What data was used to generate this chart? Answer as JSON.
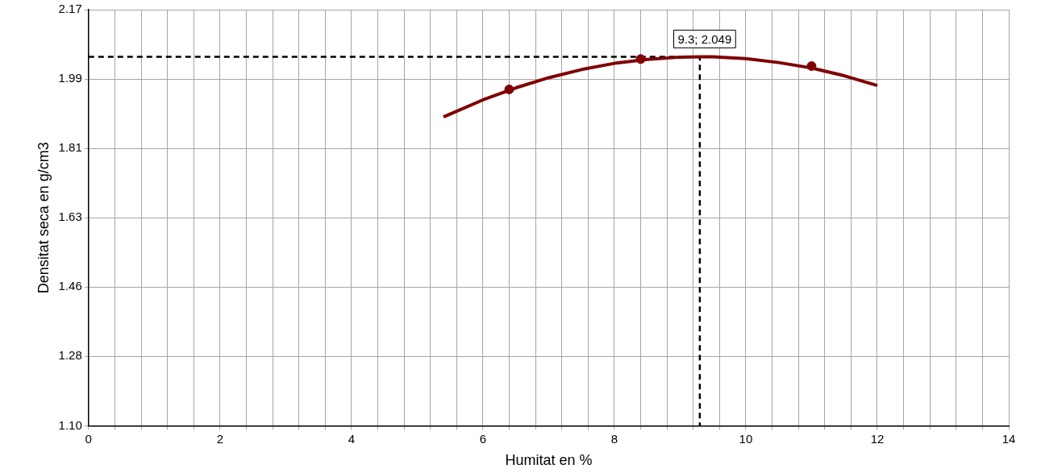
{
  "chart_data": {
    "type": "line",
    "xlabel": "Humitat en %",
    "ylabel": "Densitat seca en g/cm3",
    "xlim": [
      0,
      14
    ],
    "xticks": [
      0,
      {
        "value": 0.4,
        "label": null
      },
      {
        "value": 0.8,
        "label": null
      },
      {
        "value": 1.2,
        "label": null
      },
      {
        "value": 1.6,
        "label": null
      },
      2,
      {
        "value": 2.4,
        "label": null
      },
      {
        "value": 2.8,
        "label": null
      },
      {
        "value": 3.2,
        "label": null
      },
      {
        "value": 3.6,
        "label": null
      },
      4,
      {
        "value": 4.4,
        "label": null
      },
      {
        "value": 4.8,
        "label": null
      },
      {
        "value": 5.2,
        "label": null
      },
      {
        "value": 5.6,
        "label": null
      },
      6,
      {
        "value": 6.4,
        "label": null
      },
      {
        "value": 6.8,
        "label": null
      },
      {
        "value": 7.2,
        "label": null
      },
      {
        "value": 7.6,
        "label": null
      },
      8,
      {
        "value": 8.4,
        "label": null
      },
      {
        "value": 8.8,
        "label": null
      },
      {
        "value": 9.2,
        "label": null
      },
      {
        "value": 9.6,
        "label": null
      },
      10,
      {
        "value": 10.4,
        "label": null
      },
      {
        "value": 10.8,
        "label": null
      },
      {
        "value": 11.2,
        "label": null
      },
      {
        "value": 11.6,
        "label": null
      },
      12,
      {
        "value": 12.4,
        "label": null
      },
      {
        "value": 12.8,
        "label": null
      },
      {
        "value": 13.2,
        "label": null
      },
      {
        "value": 13.6,
        "label": null
      },
      14
    ],
    "ylim": [
      1.1,
      2.17
    ],
    "yticks": [
      {
        "value": 1.1,
        "label": "1.10"
      },
      {
        "value": 1.2783,
        "label": "1.28"
      },
      {
        "value": 1.4567,
        "label": "1.46"
      },
      {
        "value": 1.635,
        "label": "1.63"
      },
      {
        "value": 1.8133,
        "label": "1.81"
      },
      {
        "value": 1.9917,
        "label": "1.99"
      },
      {
        "value": 2.17,
        "label": "2.17"
      }
    ],
    "grid": true,
    "legend": false,
    "series": [
      {
        "color": "#800000",
        "marker": "none",
        "line_style": "solid",
        "x": [
          5.4,
          6,
          6.5,
          7,
          7.5,
          8,
          8.5,
          9,
          9.3,
          9.5,
          10,
          10.5,
          11,
          11.5,
          12
        ],
        "values": [
          1.894,
          1.938,
          1.969,
          1.995,
          2.016,
          2.032,
          2.042,
          2.048,
          2.049,
          2.049,
          2.044,
          2.034,
          2.02,
          2,
          1.975
        ]
      },
      {
        "type": "scatter",
        "color": "#800000",
        "marker": "circle",
        "x": [
          6.4,
          8.4,
          11
        ],
        "values": [
          1.965,
          2.043,
          2.025
        ]
      },
      {
        "type": "line",
        "color": "#000000",
        "marker": "none",
        "line_style": "dashed",
        "x": [
          0,
          9.3,
          9.3
        ],
        "values": [
          2.049,
          2.049,
          1.1
        ]
      }
    ],
    "annotations": [
      {
        "text": "9.3; 2.049",
        "x": 9.3,
        "y": 2.049
      }
    ]
  }
}
